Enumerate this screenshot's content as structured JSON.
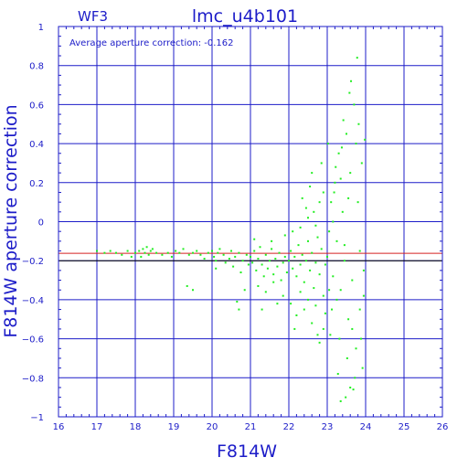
{
  "colors": {
    "axis": "#1c1cc8",
    "points": "#22ee22",
    "average_line": "#d42020",
    "reference_line": "#000000",
    "background": "#ffffff"
  },
  "chart_data": {
    "type": "scatter",
    "corner_label": "WF3",
    "title": "lmc_u4b101",
    "xlabel": "F814W",
    "ylabel": "F814W aperture correction",
    "annotation": "Average aperture correction:  -0.162",
    "xlim": [
      16,
      26
    ],
    "ylim": [
      -1,
      1
    ],
    "x_ticks": [
      16,
      17,
      18,
      19,
      20,
      21,
      22,
      23,
      24,
      25,
      26
    ],
    "y_ticks": [
      -1,
      -0.8,
      -0.6,
      -0.4,
      -0.2,
      0,
      0.2,
      0.4,
      0.6,
      0.8,
      1
    ],
    "x_tick_labels": [
      "16",
      "17",
      "18",
      "19",
      "20",
      "21",
      "22",
      "23",
      "24",
      "25",
      "26"
    ],
    "y_tick_labels": [
      "−1",
      "−0.8",
      "−0.6",
      "−0.4",
      "−0.2",
      "0",
      "0.2",
      "0.4",
      "0.6",
      "0.8",
      "1"
    ],
    "grid": true,
    "hlines": [
      {
        "name": "average",
        "y": -0.162,
        "color": "#d42020"
      },
      {
        "name": "reference",
        "y": -0.2,
        "color": "#000000"
      }
    ],
    "series": [
      {
        "color": "#22ee22",
        "points": [
          [
            17.0,
            -0.15
          ],
          [
            17.2,
            -0.16
          ],
          [
            17.35,
            -0.15
          ],
          [
            17.5,
            -0.16
          ],
          [
            17.65,
            -0.17
          ],
          [
            17.8,
            -0.15
          ],
          [
            17.9,
            -0.18
          ],
          [
            18.0,
            -0.16
          ],
          [
            18.1,
            -0.15
          ],
          [
            18.15,
            -0.18
          ],
          [
            18.2,
            -0.14
          ],
          [
            18.25,
            -0.16
          ],
          [
            18.3,
            -0.13
          ],
          [
            18.35,
            -0.17
          ],
          [
            18.4,
            -0.15
          ],
          [
            18.45,
            -0.14
          ],
          [
            18.55,
            -0.16
          ],
          [
            18.7,
            -0.17
          ],
          [
            18.85,
            -0.16
          ],
          [
            18.95,
            -0.18
          ],
          [
            19.05,
            -0.15
          ],
          [
            19.15,
            -0.16
          ],
          [
            19.25,
            -0.14
          ],
          [
            19.4,
            -0.17
          ],
          [
            19.5,
            -0.16
          ],
          [
            19.6,
            -0.15
          ],
          [
            19.7,
            -0.17
          ],
          [
            19.8,
            -0.19
          ],
          [
            19.9,
            -0.16
          ],
          [
            19.35,
            -0.33
          ],
          [
            19.5,
            -0.35
          ],
          [
            20.0,
            -0.15
          ],
          [
            20.05,
            -0.18
          ],
          [
            20.1,
            -0.2
          ],
          [
            20.15,
            -0.16
          ],
          [
            20.2,
            -0.14
          ],
          [
            20.3,
            -0.17
          ],
          [
            20.35,
            -0.21
          ],
          [
            20.45,
            -0.19
          ],
          [
            20.5,
            -0.15
          ],
          [
            20.55,
            -0.23
          ],
          [
            20.6,
            -0.18
          ],
          [
            20.7,
            -0.16
          ],
          [
            20.75,
            -0.26
          ],
          [
            20.8,
            -0.2
          ],
          [
            20.9,
            -0.17
          ],
          [
            20.95,
            -0.22
          ],
          [
            20.1,
            -0.24
          ],
          [
            20.65,
            -0.41
          ],
          [
            20.85,
            -0.35
          ],
          [
            20.7,
            -0.45
          ],
          [
            21.0,
            -0.18
          ],
          [
            21.05,
            -0.21
          ],
          [
            21.1,
            -0.15
          ],
          [
            21.15,
            -0.25
          ],
          [
            21.2,
            -0.19
          ],
          [
            21.25,
            -0.13
          ],
          [
            21.3,
            -0.22
          ],
          [
            21.35,
            -0.28
          ],
          [
            21.4,
            -0.17
          ],
          [
            21.45,
            -0.24
          ],
          [
            21.5,
            -0.2
          ],
          [
            21.55,
            -0.14
          ],
          [
            21.6,
            -0.27
          ],
          [
            21.65,
            -0.19
          ],
          [
            21.7,
            -0.23
          ],
          [
            21.75,
            -0.16
          ],
          [
            21.8,
            -0.3
          ],
          [
            21.85,
            -0.21
          ],
          [
            21.9,
            -0.18
          ],
          [
            21.95,
            -0.26
          ],
          [
            21.2,
            -0.33
          ],
          [
            21.4,
            -0.36
          ],
          [
            21.6,
            -0.31
          ],
          [
            21.85,
            -0.38
          ],
          [
            21.1,
            -0.09
          ],
          [
            21.55,
            -0.1
          ],
          [
            21.9,
            -0.07
          ],
          [
            21.3,
            -0.45
          ],
          [
            21.7,
            -0.42
          ],
          [
            22.0,
            -0.2
          ],
          [
            22.05,
            -0.15
          ],
          [
            22.1,
            -0.24
          ],
          [
            22.15,
            -0.18
          ],
          [
            22.2,
            -0.28
          ],
          [
            22.25,
            -0.12
          ],
          [
            22.3,
            -0.22
          ],
          [
            22.35,
            -0.17
          ],
          [
            22.4,
            -0.31
          ],
          [
            22.45,
            -0.2
          ],
          [
            22.5,
            -0.1
          ],
          [
            22.55,
            -0.25
          ],
          [
            22.6,
            -0.16
          ],
          [
            22.65,
            -0.34
          ],
          [
            22.7,
            -0.21
          ],
          [
            22.75,
            -0.08
          ],
          [
            22.8,
            -0.27
          ],
          [
            22.85,
            -0.14
          ],
          [
            22.9,
            -0.38
          ],
          [
            22.95,
            -0.22
          ],
          [
            22.1,
            -0.05
          ],
          [
            22.3,
            -0.03
          ],
          [
            22.5,
            0.02
          ],
          [
            22.65,
            0.05
          ],
          [
            22.8,
            0.1
          ],
          [
            22.9,
            0.15
          ],
          [
            22.45,
            0.07
          ],
          [
            22.7,
            -0.02
          ],
          [
            22.35,
            0.12
          ],
          [
            22.55,
            0.18
          ],
          [
            22.85,
            0.3
          ],
          [
            22.6,
            0.25
          ],
          [
            22.05,
            -0.42
          ],
          [
            22.2,
            -0.48
          ],
          [
            22.4,
            -0.45
          ],
          [
            22.6,
            -0.52
          ],
          [
            22.75,
            -0.58
          ],
          [
            22.9,
            -0.55
          ],
          [
            22.3,
            -0.36
          ],
          [
            22.5,
            -0.4
          ],
          [
            22.8,
            -0.62
          ],
          [
            22.95,
            -0.47
          ],
          [
            22.15,
            -0.55
          ],
          [
            22.7,
            -0.43
          ],
          [
            23.0,
            -0.18
          ],
          [
            23.05,
            -0.05
          ],
          [
            23.1,
            0.1
          ],
          [
            23.15,
            -0.28
          ],
          [
            23.2,
            0.2
          ],
          [
            23.25,
            -0.1
          ],
          [
            23.3,
            0.35
          ],
          [
            23.35,
            -0.35
          ],
          [
            23.4,
            0.05
          ],
          [
            23.45,
            -0.2
          ],
          [
            23.5,
            0.45
          ],
          [
            23.55,
            -0.5
          ],
          [
            23.6,
            0.25
          ],
          [
            23.65,
            -0.3
          ],
          [
            23.7,
            0.6
          ],
          [
            23.75,
            -0.65
          ],
          [
            23.8,
            0.1
          ],
          [
            23.85,
            -0.45
          ],
          [
            23.9,
            0.3
          ],
          [
            23.95,
            -0.25
          ],
          [
            23.02,
            0.4
          ],
          [
            23.12,
            -0.45
          ],
          [
            23.22,
            0.28
          ],
          [
            23.32,
            -0.6
          ],
          [
            23.42,
            0.52
          ],
          [
            23.52,
            -0.7
          ],
          [
            23.62,
            0.72
          ],
          [
            23.72,
            -0.8
          ],
          [
            23.82,
            0.5
          ],
          [
            23.92,
            -0.75
          ],
          [
            23.08,
            -0.58
          ],
          [
            23.28,
            -0.78
          ],
          [
            23.48,
            -0.9
          ],
          [
            23.68,
            -0.86
          ],
          [
            23.78,
            0.84
          ],
          [
            23.58,
            0.66
          ],
          [
            23.38,
            0.38
          ],
          [
            23.18,
            0.15
          ],
          [
            23.88,
            -0.6
          ],
          [
            23.98,
            0.42
          ],
          [
            23.05,
            -0.35
          ],
          [
            23.15,
            0.0
          ],
          [
            23.25,
            -0.4
          ],
          [
            23.35,
            0.22
          ],
          [
            23.45,
            -0.12
          ],
          [
            23.55,
            0.12
          ],
          [
            23.65,
            -0.55
          ],
          [
            23.75,
            0.4
          ],
          [
            23.85,
            -0.15
          ],
          [
            23.95,
            -0.38
          ],
          [
            23.35,
            -0.92
          ],
          [
            23.6,
            -0.85
          ]
        ]
      }
    ]
  }
}
